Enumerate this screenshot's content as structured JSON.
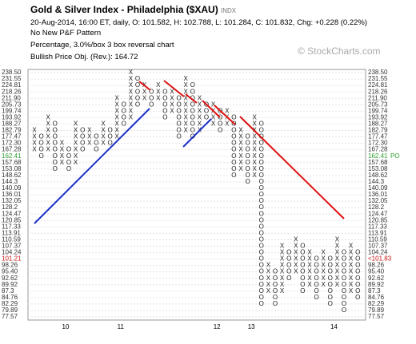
{
  "chart_data": {
    "type": "pnf",
    "title": "Gold & Silver Index - Philadelphia ($XAU)",
    "exchange": "INDX",
    "subtitle": "20-Aug-2014, 16:00 ET, daily, O: 101.582, H: 102.788, L: 101.284, C: 101.832, Chg: +0.228 (0.22%)",
    "pattern": "No New P&F Pattern",
    "scaling": "Percentage, 3.0%/box 3 box reversal chart",
    "objective": "Bullish Price Obj. (Rev.): 164.72",
    "watermark": "© StockCharts.com",
    "log_scale": true,
    "grid": true,
    "ylim": [
      77.57,
      238.5
    ],
    "yticks": [
      {
        "value": 238.5,
        "label": "238.50"
      },
      231.55,
      224.81,
      218.26,
      {
        "value": 211.9,
        "label": "211.90"
      },
      205.73,
      199.74,
      193.92,
      188.27,
      182.79,
      177.47,
      {
        "value": 172.3,
        "label": "172.30"
      },
      167.28,
      162.41,
      157.68,
      153.08,
      148.62,
      144.3,
      140.09,
      136.01,
      132.05,
      128.2,
      124.47,
      120.85,
      117.33,
      113.91,
      110.59,
      107.37,
      104.24,
      101.21,
      98.26,
      {
        "value": 95.4,
        "label": "95.40"
      },
      92.62,
      89.92,
      87.3,
      84.76,
      82.29,
      79.89,
      77.57
    ],
    "price_objective": {
      "value": 164.72,
      "label": "PO",
      "color": "#2a9d2a"
    },
    "last_price": {
      "value": 101.83,
      "label": "<101.83",
      "color": "#cc1111"
    },
    "x_labels": [
      {
        "label": "10",
        "column": 5
      },
      {
        "label": "11",
        "column": 13
      },
      {
        "label": "12",
        "column": 27
      },
      {
        "label": "13",
        "column": 32
      },
      {
        "label": "14",
        "column": 44
      }
    ],
    "columns": [
      {
        "type": "X",
        "high": 182.79,
        "low": 167.28
      },
      {
        "type": "O",
        "high": 177.47,
        "low": 162.41
      },
      {
        "type": "X",
        "high": 193.92,
        "low": 167.28
      },
      {
        "type": "O",
        "high": 188.27,
        "low": 153.08
      },
      {
        "type": "X",
        "high": 172.3,
        "low": 157.68
      },
      {
        "type": "O",
        "high": 167.28,
        "low": 153.08
      },
      {
        "type": "X",
        "high": 188.27,
        "low": 157.68
      },
      {
        "type": "O",
        "high": 182.79,
        "low": 167.28
      },
      {
        "type": "X",
        "high": 182.79,
        "low": 172.3
      },
      {
        "type": "O",
        "high": 177.47,
        "low": 167.28
      },
      {
        "type": "X",
        "high": 188.27,
        "low": 172.3
      },
      {
        "type": "O",
        "high": 182.79,
        "low": 172.3
      },
      {
        "type": "X",
        "high": 211.9,
        "low": 177.47
      },
      {
        "type": "O",
        "high": 205.73,
        "low": 188.27
      },
      {
        "type": "X",
        "high": 238.5,
        "low": 193.92
      },
      {
        "type": "O",
        "high": 231.55,
        "low": 205.73
      },
      {
        "type": "X",
        "high": 224.81,
        "low": 211.9
      },
      {
        "type": "O",
        "high": 218.26,
        "low": 205.73
      },
      {
        "type": "X",
        "high": 224.81,
        "low": 211.9
      },
      {
        "type": "O",
        "high": 218.26,
        "low": 193.92
      },
      {
        "type": "X",
        "high": 218.26,
        "low": 199.74
      },
      {
        "type": "O",
        "high": 211.9,
        "low": 177.47
      },
      {
        "type": "X",
        "high": 231.55,
        "low": 182.79
      },
      {
        "type": "O",
        "high": 224.81,
        "low": 177.47
      },
      {
        "type": "X",
        "high": 211.9,
        "low": 182.79
      },
      {
        "type": "O",
        "high": 205.73,
        "low": 193.92
      },
      {
        "type": "X",
        "high": 205.73,
        "low": 188.27
      },
      {
        "type": "O",
        "high": 199.74,
        "low": 182.79
      },
      {
        "type": "X",
        "high": 199.74,
        "low": 188.27
      },
      {
        "type": "O",
        "high": 193.92,
        "low": 148.62
      },
      {
        "type": "X",
        "high": 182.79,
        "low": 153.08
      },
      {
        "type": "O",
        "high": 177.47,
        "low": 144.3
      },
      {
        "type": "X",
        "high": 193.92,
        "low": 148.62
      },
      {
        "type": "O",
        "high": 188.27,
        "low": 82.29
      },
      {
        "type": "X",
        "high": 98.26,
        "low": 87.3
      },
      {
        "type": "O",
        "high": 95.4,
        "low": 82.29
      },
      {
        "type": "X",
        "high": 107.37,
        "low": 87.3
      },
      {
        "type": "O",
        "high": 104.24,
        "low": 92.62
      },
      {
        "type": "X",
        "high": 110.59,
        "low": 95.4
      },
      {
        "type": "O",
        "high": 107.37,
        "low": 87.3
      },
      {
        "type": "X",
        "high": 104.24,
        "low": 89.92
      },
      {
        "type": "O",
        "high": 101.21,
        "low": 84.76
      },
      {
        "type": "X",
        "high": 104.24,
        "low": 89.92
      },
      {
        "type": "O",
        "high": 101.21,
        "low": 82.29
      },
      {
        "type": "X",
        "high": 110.59,
        "low": 89.92
      },
      {
        "type": "O",
        "high": 104.24,
        "low": 79.89
      },
      {
        "type": "X",
        "high": 107.37,
        "low": 87.3
      },
      {
        "type": "O",
        "high": 104.24,
        "low": 84.76
      }
    ]
  }
}
